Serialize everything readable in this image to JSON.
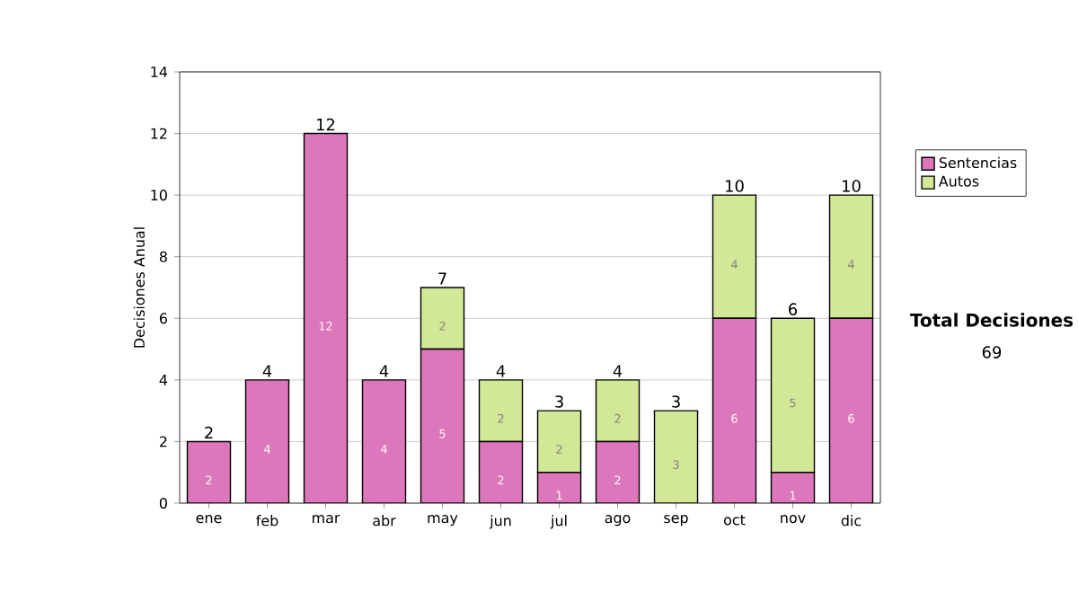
{
  "chart_data": {
    "type": "bar",
    "stacked": true,
    "ylabel": "Decisiones Anual",
    "categories": [
      "ene",
      "feb",
      "mar",
      "abr",
      "may",
      "jun",
      "jul",
      "ago",
      "sep",
      "oct",
      "nov",
      "dic"
    ],
    "series": [
      {
        "name": "Sentencias",
        "color": "#dd77bb",
        "values": [
          2,
          4,
          12,
          4,
          5,
          2,
          1,
          2,
          0,
          6,
          1,
          6
        ],
        "value_labels": [
          "2",
          "4",
          "12",
          "4",
          "5",
          "2",
          "1",
          "2",
          null,
          "6",
          "1",
          "6"
        ]
      },
      {
        "name": "Autos",
        "color": "#d2e896",
        "values": [
          0,
          0,
          0,
          0,
          2,
          2,
          2,
          2,
          3,
          4,
          5,
          4
        ],
        "value_labels": [
          null,
          null,
          null,
          null,
          "2",
          "2",
          "2",
          "2",
          "3",
          "4",
          "5",
          "4"
        ]
      }
    ],
    "totals": [
      "2",
      "4",
      "12",
      "4",
      "7",
      "4",
      "3",
      "4",
      "3",
      "10",
      "6",
      "10"
    ],
    "ylim": [
      0,
      14
    ],
    "yticks": [
      0,
      2,
      4,
      6,
      8,
      10,
      12,
      14
    ],
    "grid": "y",
    "legend": "right",
    "annotations": [
      "Total Decisiones",
      "69"
    ]
  }
}
